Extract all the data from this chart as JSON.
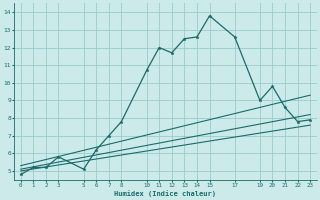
{
  "xlabel": "Humidex (Indice chaleur)",
  "bg_color": "#cceaea",
  "grid_color": "#99cccc",
  "line_color": "#1a6b6b",
  "xlim": [
    -0.5,
    23.5
  ],
  "ylim": [
    4.5,
    14.5
  ],
  "xticks": [
    0,
    1,
    2,
    3,
    5,
    6,
    7,
    8,
    10,
    11,
    12,
    13,
    14,
    15,
    17,
    19,
    20,
    21,
    22,
    23
  ],
  "yticks": [
    5,
    6,
    7,
    8,
    9,
    10,
    11,
    12,
    13,
    14
  ],
  "main_line": {
    "x": [
      0,
      1,
      2,
      3,
      5,
      6,
      7,
      8,
      10,
      11,
      12,
      13,
      14,
      15,
      17,
      19,
      20,
      21,
      22,
      23
    ],
    "y": [
      4.8,
      5.2,
      5.2,
      5.8,
      5.1,
      6.2,
      7.0,
      7.8,
      10.7,
      12.0,
      11.7,
      12.5,
      12.6,
      13.8,
      12.6,
      9.0,
      9.8,
      8.6,
      7.8,
      7.9
    ]
  },
  "trend_lines": [
    {
      "x": [
        0,
        23
      ],
      "y": [
        5.0,
        7.6
      ]
    },
    {
      "x": [
        0,
        23
      ],
      "y": [
        5.1,
        8.2
      ]
    },
    {
      "x": [
        0,
        23
      ],
      "y": [
        5.3,
        9.3
      ]
    }
  ]
}
